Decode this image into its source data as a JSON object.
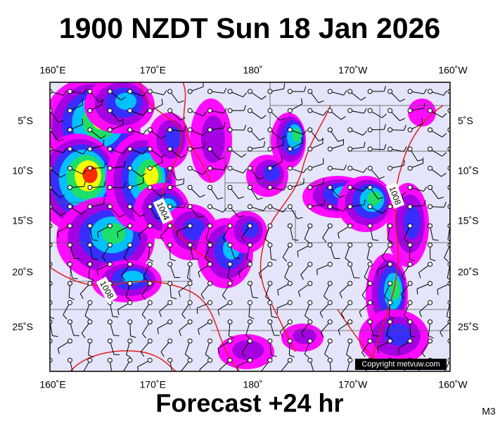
{
  "header": {
    "title": "1900 NZDT Sun 18 Jan 2026"
  },
  "map": {
    "top_labels": [
      "160˚E",
      "170˚E",
      "180˚",
      "170˚W",
      "160˚W"
    ],
    "bottom_labels": [
      "160˚E",
      "170˚E",
      "180˚",
      "170˚W",
      "160˚W"
    ],
    "left_labels": [
      "5˚S",
      "10˚S",
      "15˚S",
      "20˚S",
      "25˚S"
    ],
    "right_labels": [
      "5˚S",
      "10˚S",
      "15˚S",
      "20˚S",
      "25˚S"
    ],
    "isobar_labels": [
      "1004",
      "1008",
      "1008"
    ],
    "copyright": "Copyright metvuw.com"
  },
  "footer": {
    "forecast": "Forecast +24 hr",
    "code": "M3"
  }
}
